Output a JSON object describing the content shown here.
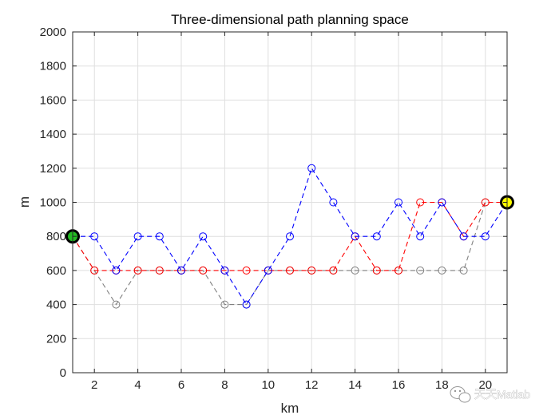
{
  "chart_data": {
    "type": "line",
    "title": "Three-dimensional path planning space",
    "xlabel": "km",
    "ylabel": "m",
    "xlim": [
      1,
      21
    ],
    "ylim": [
      0,
      2000
    ],
    "xticks": [
      2,
      4,
      6,
      8,
      10,
      12,
      14,
      16,
      18,
      20
    ],
    "yticks": [
      0,
      200,
      400,
      600,
      800,
      1000,
      1200,
      1400,
      1600,
      1800,
      2000
    ],
    "grid": true,
    "x": [
      1,
      2,
      3,
      4,
      5,
      6,
      7,
      8,
      9,
      10,
      11,
      12,
      13,
      14,
      15,
      16,
      17,
      18,
      19,
      20,
      21
    ],
    "series": [
      {
        "color": "#808080",
        "line_style": "dashed",
        "marker": "circle",
        "values": [
          800,
          600,
          400,
          600,
          600,
          600,
          600,
          400,
          400,
          600,
          600,
          600,
          600,
          600,
          600,
          600,
          600,
          600,
          600,
          1000,
          1000
        ]
      },
      {
        "color": "#ff0000",
        "line_style": "dashed",
        "marker": "circle",
        "values": [
          800,
          600,
          600,
          600,
          600,
          600,
          600,
          600,
          600,
          600,
          600,
          600,
          600,
          800,
          600,
          600,
          1000,
          1000,
          800,
          1000,
          1000
        ]
      },
      {
        "color": "#0000ff",
        "line_style": "dashed",
        "marker": "circle",
        "values": [
          800,
          800,
          600,
          800,
          800,
          600,
          800,
          600,
          400,
          600,
          800,
          1200,
          1000,
          800,
          800,
          1000,
          800,
          1000,
          800,
          800,
          1000
        ]
      }
    ],
    "start_point": {
      "x": 1,
      "y": 800,
      "color": "#22bb22"
    },
    "end_point": {
      "x": 21,
      "y": 1000,
      "color": "#ffff00"
    }
  },
  "watermark": {
    "text": "天天Matlab",
    "icon": "wechat-icon"
  }
}
